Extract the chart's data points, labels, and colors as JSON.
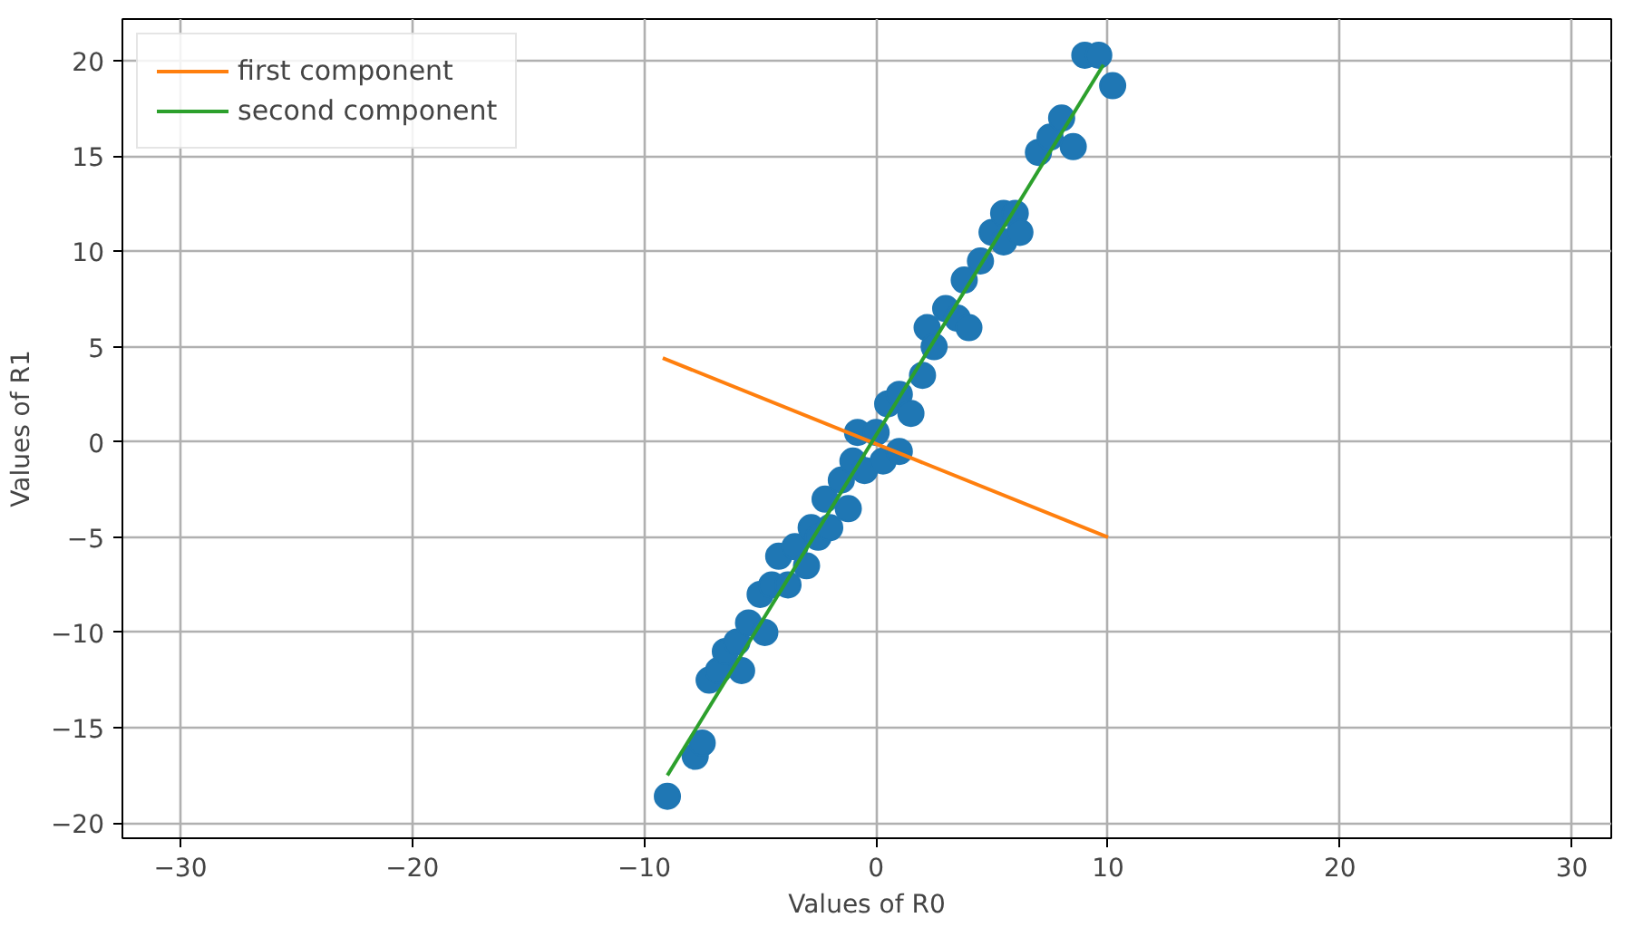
{
  "chart_data": {
    "type": "scatter",
    "xlabel": "Values of R0",
    "ylabel": "Values of R1",
    "xlim": [
      -32.5,
      31.7
    ],
    "ylim": [
      -20.8,
      22.2
    ],
    "xticks": [
      -30,
      -20,
      -10,
      0,
      10,
      20,
      30
    ],
    "yticks": [
      -20,
      -15,
      -10,
      -5,
      0,
      5,
      10,
      15,
      20
    ],
    "grid": true,
    "legend": "top left",
    "series": [
      {
        "marker": "circle",
        "color": "#1f77b4",
        "x": [
          -9.0,
          -7.8,
          -7.5,
          -7.2,
          -6.8,
          -6.5,
          -6.0,
          -5.8,
          -5.5,
          -5.0,
          -4.8,
          -4.5,
          -4.2,
          -3.8,
          -3.5,
          -3.0,
          -2.8,
          -2.5,
          -2.2,
          -2.0,
          -1.5,
          -1.2,
          -1.0,
          -0.8,
          -0.5,
          0.0,
          0.3,
          0.5,
          1.0,
          1.0,
          1.5,
          2.0,
          2.2,
          2.5,
          3.0,
          3.5,
          3.8,
          4.0,
          4.5,
          5.0,
          5.5,
          5.5,
          6.0,
          6.2,
          7.0,
          7.5,
          8.0,
          8.5,
          9.0,
          9.6,
          10.2
        ],
        "values": [
          -18.6,
          -16.5,
          -15.8,
          -12.5,
          -12.0,
          -11.0,
          -10.5,
          -12.0,
          -9.5,
          -8.0,
          -10.0,
          -7.5,
          -6.0,
          -7.5,
          -5.5,
          -6.5,
          -4.5,
          -5.0,
          -3.0,
          -4.5,
          -2.0,
          -3.5,
          -1.0,
          0.5,
          -1.5,
          0.5,
          -1.0,
          2.0,
          -0.5,
          2.5,
          1.5,
          3.5,
          6.0,
          5.0,
          7.0,
          6.5,
          8.5,
          6.0,
          9.5,
          11.0,
          10.5,
          12.0,
          12.0,
          11.0,
          15.2,
          16.0,
          17.0,
          15.5,
          20.3,
          20.3,
          18.7
        ]
      },
      {
        "type": "line",
        "name": "first component",
        "color": "#ff7f0e",
        "x": [
          -9.2,
          10.0
        ],
        "values": [
          4.4,
          -5.0
        ]
      },
      {
        "type": "line",
        "name": "second component",
        "color": "#2ca02c",
        "x": [
          -9.0,
          9.8
        ],
        "values": [
          -17.5,
          19.8
        ]
      }
    ]
  }
}
